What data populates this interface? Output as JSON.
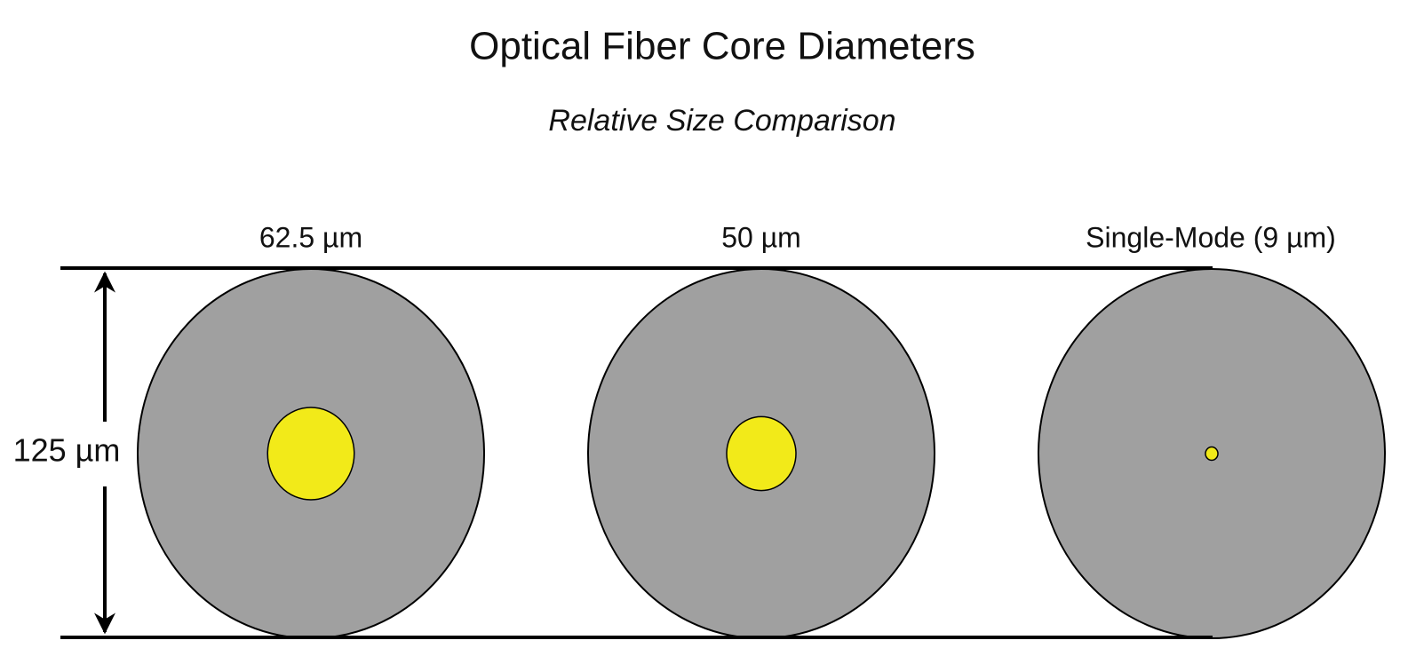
{
  "header": {
    "title": "Optical Fiber Core Diameters",
    "subtitle": "Relative Size Comparison"
  },
  "cladding": {
    "value": 125,
    "label": "125 µm"
  },
  "fibers": [
    {
      "label": "62.5 µm",
      "core": 62.5
    },
    {
      "label": "50 µm",
      "core": 50
    },
    {
      "label": "Single-Mode (9 µm)",
      "core": 9
    }
  ]
}
